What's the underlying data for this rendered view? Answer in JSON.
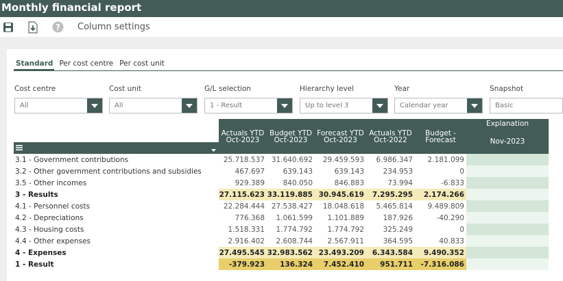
{
  "app": {
    "title": "Monthly financial report"
  },
  "toolbar": {
    "save_icon": "save-icon",
    "export_icon": "export-icon",
    "help_icon": "help-icon",
    "column_settings_label": "Column settings"
  },
  "tabs": [
    {
      "label": "Standard",
      "active": true
    },
    {
      "label": "Per cost centre",
      "active": false
    },
    {
      "label": "Per cost unit",
      "active": false
    }
  ],
  "filters": [
    {
      "label": "Cost centre",
      "value": "All"
    },
    {
      "label": "Cost unit",
      "value": "All"
    },
    {
      "label": "G/L selection",
      "value": "1 - Result"
    },
    {
      "label": "Hierarchy level",
      "value": "Up to level 3"
    },
    {
      "label": "Year",
      "value": "Calendar year"
    },
    {
      "label": "Snapshot",
      "value": "Basic"
    }
  ],
  "grid": {
    "columns": [
      {
        "line1": "Actuals YTD",
        "line2": "Oct-2023"
      },
      {
        "line1": "Budget YTD",
        "line2": "Oct-2023"
      },
      {
        "line1": "Forecast YTD",
        "line2": "Oct-2023"
      },
      {
        "line1": "Actuals YTD",
        "line2": "Oct-2022"
      },
      {
        "line1": "Budget -",
        "line2": "Forecast"
      }
    ],
    "explanation": {
      "title": "Explanation",
      "period": "Nov-2023"
    },
    "menu_icon": "menu-icon",
    "rows": [
      {
        "label": "3.1 - Government contributions",
        "values": [
          "25.718.537",
          "31.640.692",
          "29.459.593",
          "6.986.347",
          "2.181.099"
        ],
        "bold": false
      },
      {
        "label": "3.2 - Other government contributions and subsidies",
        "values": [
          "467.697",
          "639.143",
          "639.143",
          "234.953",
          "0"
        ],
        "bold": false
      },
      {
        "label": "3.5 - Other incomes",
        "values": [
          "929.389",
          "840.050",
          "846.883",
          "73.994",
          "-6.833"
        ],
        "bold": false
      },
      {
        "label": "3 - Results",
        "values": [
          "27.115.623",
          "33.119.885",
          "30.945.619",
          "7.295.295",
          "2.174.266"
        ],
        "bold": true
      },
      {
        "label": "4.1 - Personnel costs",
        "values": [
          "22.284.444",
          "27.538.427",
          "18.048.618",
          "5.465.814",
          "9.489.809"
        ],
        "bold": false
      },
      {
        "label": "4.2 - Depreciations",
        "values": [
          "776.368",
          "1.061.599",
          "1.101.889",
          "187.926",
          "-40.290"
        ],
        "bold": false
      },
      {
        "label": "4.3 - Housing costs",
        "values": [
          "1.518.331",
          "1.774.792",
          "1.774.792",
          "325.249",
          "0"
        ],
        "bold": false
      },
      {
        "label": "4.4 - Other expenses",
        "values": [
          "2.916.402",
          "2.608.744",
          "2.567.911",
          "364.595",
          "40.833"
        ],
        "bold": false
      },
      {
        "label": "4 - Expenses",
        "values": [
          "27.495.545",
          "32.983.562",
          "23.493.209",
          "6.343.584",
          "9.490.352"
        ],
        "bold": true
      },
      {
        "label": "1 - Result",
        "values": [
          "-379.923",
          "136.324",
          "7.452.410",
          "951.711",
          "-7.316.086"
        ],
        "bold": true,
        "result": true
      }
    ]
  },
  "colors": {
    "accent": "#435c57",
    "subtotal_highlight": "#f5ebb9",
    "result_highlight": "#e8cf6a",
    "explanation_green": "#d3e6d8"
  }
}
